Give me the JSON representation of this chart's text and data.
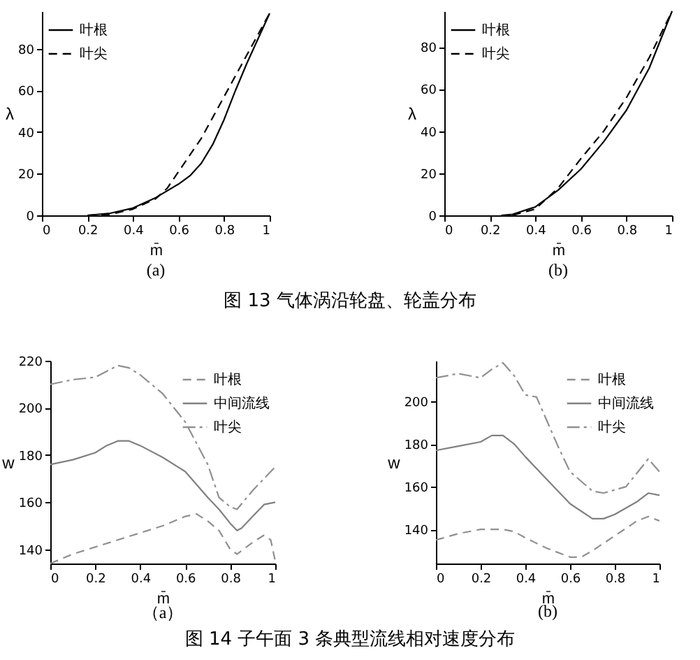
{
  "chart_data": [
    {
      "type": "line",
      "xlabel": "m̄",
      "ylabel": "λ",
      "xlim": [
        0,
        1
      ],
      "xticks": [
        0,
        0.2,
        0.4,
        0.6,
        0.8,
        1
      ],
      "ylim": [
        0,
        98
      ],
      "yticks": [
        0,
        20,
        40,
        60,
        80
      ],
      "legend": "top left",
      "annotations": [
        "(a)",
        "图 13  气体涡沿轮盘、轮盖分布"
      ],
      "series": [
        {
          "name": "叶根",
          "color": "#000000",
          "line_style": "solid",
          "x": [
            0.2,
            0.3,
            0.4,
            0.5,
            0.6,
            0.65,
            0.7,
            0.75,
            0.8,
            0.85,
            0.9,
            0.95,
            1
          ],
          "values": [
            0,
            1,
            3.5,
            8.5,
            15,
            19,
            25,
            34,
            46,
            60,
            73,
            85,
            97
          ]
        },
        {
          "name": "叶尖",
          "color": "#000000",
          "line_style": "dashed",
          "x": [
            0.2,
            0.3,
            0.4,
            0.5,
            0.55,
            0.6,
            0.65,
            0.7,
            0.75,
            0.8,
            0.85,
            0.9,
            0.95,
            1
          ],
          "values": [
            0,
            0.5,
            3,
            8,
            13,
            21,
            29,
            37,
            47,
            57,
            67,
            77,
            87,
            97
          ]
        }
      ]
    },
    {
      "type": "line",
      "xlabel": "m̄",
      "ylabel": "λ",
      "xlim": [
        0,
        1
      ],
      "xticks": [
        0,
        0.2,
        0.4,
        0.6,
        0.8,
        1
      ],
      "ylim": [
        0,
        97
      ],
      "yticks": [
        0,
        20,
        40,
        60,
        80
      ],
      "legend": "top left",
      "annotations": [
        "(b)"
      ],
      "series": [
        {
          "name": "叶根",
          "color": "#000000",
          "line_style": "solid",
          "x": [
            0.25,
            0.3,
            0.4,
            0.5,
            0.6,
            0.7,
            0.8,
            0.9,
            1
          ],
          "values": [
            0,
            0.5,
            4,
            12,
            22,
            35,
            50,
            70,
            97
          ]
        },
        {
          "name": "叶尖",
          "color": "#000000",
          "line_style": "dashed",
          "x": [
            0.3,
            0.4,
            0.5,
            0.6,
            0.7,
            0.8,
            0.9,
            1
          ],
          "values": [
            0,
            3,
            13,
            27,
            40,
            56,
            75,
            97
          ]
        }
      ]
    },
    {
      "type": "line",
      "xlabel": "m̄",
      "ylabel": "w",
      "xlim": [
        0,
        1
      ],
      "xticks": [
        0,
        0.2,
        0.4,
        0.6,
        0.8,
        1
      ],
      "ylim": [
        134,
        220
      ],
      "yticks": [
        140,
        160,
        180,
        200,
        220
      ],
      "legend": "top right",
      "annotations": [
        "（a）",
        "图 14  子午面 3 条典型流线相对速度分布"
      ],
      "series": [
        {
          "name": "叶根",
          "color": "#909090",
          "line_style": "dashed",
          "x": [
            0,
            0.1,
            0.2,
            0.3,
            0.4,
            0.5,
            0.6,
            0.65,
            0.7,
            0.75,
            0.8,
            0.83,
            0.9,
            0.95,
            0.98,
            1
          ],
          "values": [
            134,
            138,
            141,
            144,
            147,
            150,
            154,
            155,
            152,
            148,
            140,
            138,
            143,
            146,
            144,
            135
          ]
        },
        {
          "name": "中间流线",
          "color": "#808080",
          "line_style": "solid",
          "x": [
            0,
            0.1,
            0.2,
            0.25,
            0.3,
            0.35,
            0.4,
            0.5,
            0.6,
            0.7,
            0.75,
            0.8,
            0.83,
            0.85,
            0.9,
            0.95,
            1
          ],
          "values": [
            176,
            178,
            181,
            184,
            186,
            186,
            184,
            179,
            173,
            162,
            157,
            151,
            148,
            149,
            154,
            159,
            160
          ]
        },
        {
          "name": "叶尖",
          "color": "#909090",
          "line_style": "dashdot",
          "x": [
            0,
            0.1,
            0.2,
            0.3,
            0.35,
            0.4,
            0.5,
            0.6,
            0.7,
            0.75,
            0.8,
            0.83,
            0.9,
            1
          ],
          "values": [
            210,
            212,
            213,
            218,
            217,
            214,
            206,
            194,
            176,
            162,
            158,
            157,
            165,
            175
          ]
        }
      ]
    },
    {
      "type": "line",
      "xlabel": "m̄",
      "ylabel": "w",
      "xlim": [
        0,
        1
      ],
      "xticks": [
        0,
        0.2,
        0.4,
        0.6,
        0.8,
        1
      ],
      "ylim": [
        124,
        219
      ],
      "yticks": [
        140,
        160,
        180,
        200
      ],
      "legend": "top right",
      "annotations": [
        "(b)"
      ],
      "series": [
        {
          "name": "叶根",
          "color": "#909090",
          "line_style": "dashed",
          "x": [
            0,
            0.1,
            0.2,
            0.3,
            0.35,
            0.4,
            0.5,
            0.6,
            0.65,
            0.7,
            0.8,
            0.9,
            0.95,
            1
          ],
          "values": [
            135,
            138,
            140,
            140,
            139,
            136,
            131,
            127,
            127,
            130,
            137,
            144,
            146,
            144
          ]
        },
        {
          "name": "中间流线",
          "color": "#808080",
          "line_style": "solid",
          "x": [
            0,
            0.1,
            0.2,
            0.25,
            0.3,
            0.35,
            0.4,
            0.5,
            0.6,
            0.7,
            0.75,
            0.8,
            0.9,
            0.95,
            1
          ],
          "values": [
            177,
            179,
            181,
            184,
            184,
            180,
            174,
            163,
            152,
            145,
            145,
            147,
            153,
            157,
            156
          ]
        },
        {
          "name": "叶尖",
          "color": "#909090",
          "line_style": "dashdot",
          "x": [
            0,
            0.1,
            0.2,
            0.25,
            0.3,
            0.35,
            0.4,
            0.45,
            0.5,
            0.55,
            0.6,
            0.7,
            0.75,
            0.85,
            0.95,
            1
          ],
          "values": [
            211,
            213,
            211,
            215,
            218,
            212,
            203,
            202,
            190,
            178,
            167,
            158,
            157,
            160,
            173,
            167
          ]
        }
      ]
    }
  ]
}
